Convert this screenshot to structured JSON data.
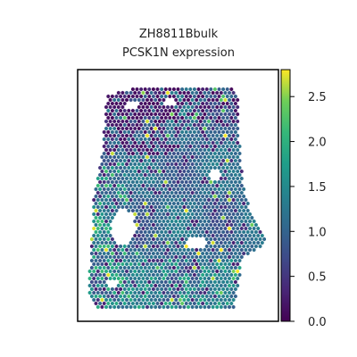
{
  "chart_data": {
    "type": "heatmap",
    "title": "ZH8811Bbulk",
    "subtitle": "PCSK1N expression",
    "xlabel": "",
    "ylabel": "",
    "colormap": "viridis",
    "colorbar": {
      "vmin": 0.0,
      "vmax": 2.8,
      "ticks": [
        0.0,
        0.5,
        1.0,
        1.5,
        2.0,
        2.5
      ],
      "tick_labels": [
        "0.0",
        "0.5",
        "1.0",
        "1.5",
        "2.0",
        "2.5"
      ]
    },
    "grid": false,
    "legend": "colorbar-right",
    "spots": "hexagonal spatial spots colored by PCSK1N expression (mostly 0.5–1.6, scattered highs up to ~2.8, dark low-expression band near the top)"
  },
  "colors": {
    "viridis_low": "#440154",
    "viridis_mid": "#21918c",
    "viridis_high": "#fde725",
    "frame": "#000000"
  }
}
